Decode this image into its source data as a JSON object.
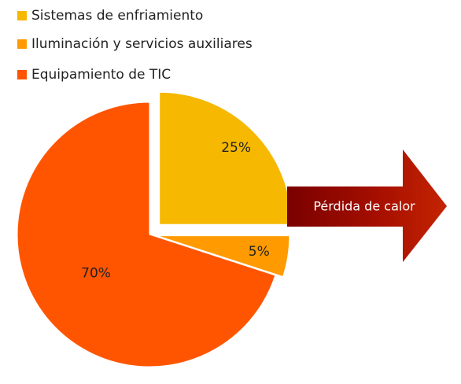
{
  "chart_data": {
    "type": "pie",
    "categories": [
      "Sistemas de enfriamiento",
      "Iluminación y servicios auxiliares",
      "Equipamiento de TIC"
    ],
    "values": [
      25,
      5,
      70
    ],
    "value_labels": [
      "25%",
      "5%",
      "70%"
    ],
    "colors": [
      "#f6b800",
      "#ff9a00",
      "#ff5500"
    ],
    "annotation": "Pérdida de calor"
  }
}
